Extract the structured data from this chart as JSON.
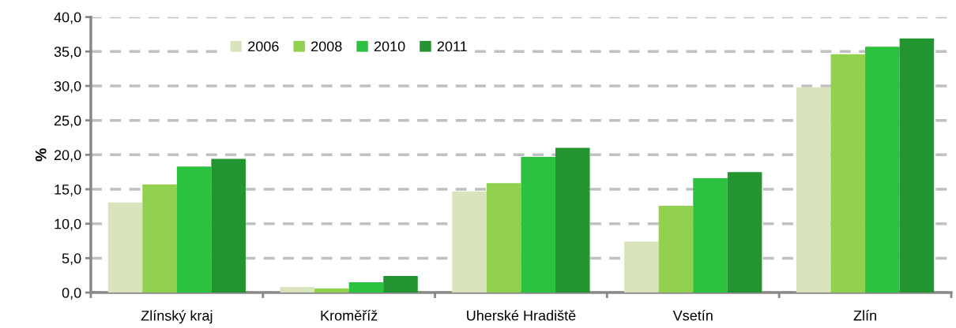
{
  "chart_data": {
    "type": "bar",
    "ylabel": "%",
    "categories": [
      "Zlínský kraj",
      "Kroměříž",
      "Uherské Hradiště",
      "Vsetín",
      "Zlín"
    ],
    "series": [
      {
        "name": "2006",
        "color": "#d9e4bd",
        "values": [
          13.1,
          0.8,
          14.7,
          7.4,
          29.8
        ]
      },
      {
        "name": "2008",
        "color": "#92d050",
        "values": [
          15.7,
          0.6,
          15.9,
          12.6,
          34.6
        ]
      },
      {
        "name": "2010",
        "color": "#2cc13e",
        "values": [
          18.3,
          1.5,
          19.7,
          16.6,
          35.7
        ]
      },
      {
        "name": "2011",
        "color": "#229531",
        "values": [
          19.4,
          2.4,
          21.0,
          17.5,
          36.9
        ]
      }
    ],
    "ylim": [
      0,
      40
    ],
    "yticks": [
      {
        "value": 0,
        "label": "0,0"
      },
      {
        "value": 5,
        "label": "5,0"
      },
      {
        "value": 10,
        "label": "10,0"
      },
      {
        "value": 15,
        "label": "15,0"
      },
      {
        "value": 20,
        "label": "20,0"
      },
      {
        "value": 25,
        "label": "25,0"
      },
      {
        "value": 30,
        "label": "30,0"
      },
      {
        "value": 35,
        "label": "35,0"
      },
      {
        "value": 40,
        "label": "40,0"
      }
    ],
    "grid": "y",
    "legend": "top"
  }
}
